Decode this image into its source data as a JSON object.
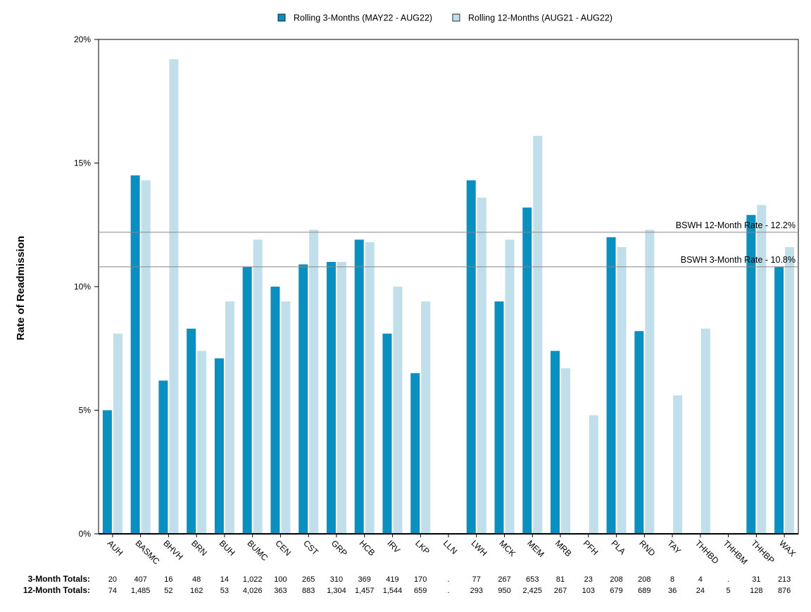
{
  "chart_data": {
    "type": "bar",
    "ylabel": "Rate of Readmission",
    "ylim": [
      0,
      20
    ],
    "yticks": [
      "0%",
      "5%",
      "10%",
      "15%",
      "20%"
    ],
    "grid": false,
    "legend_placement": "top-center",
    "categories": [
      "AUH",
      "BASMC",
      "BHVH",
      "BRN",
      "BUH",
      "BUMC",
      "CEN",
      "CST",
      "GRP",
      "HCB",
      "IRV",
      "LKP",
      "LLN",
      "LWH",
      "MCK",
      "MEM",
      "MRB",
      "PFH",
      "PLA",
      "RND",
      "TAY",
      "THHBD",
      "THHBM",
      "THHBP",
      "WAX"
    ],
    "series": [
      {
        "name": "Rolling 3-Months (MAY22 - AUG22)",
        "color": "#0a8fc1",
        "values": [
          5.0,
          14.5,
          6.2,
          8.3,
          7.1,
          10.8,
          10.0,
          10.9,
          11.0,
          11.9,
          8.1,
          6.5,
          null,
          14.3,
          9.4,
          13.2,
          7.4,
          null,
          12.0,
          8.2,
          null,
          null,
          null,
          12.9,
          10.8
        ]
      },
      {
        "name": "Rolling 12-Months (AUG21 - AUG22)",
        "color": "#c1dfea",
        "values": [
          8.1,
          14.3,
          19.2,
          7.4,
          9.4,
          11.9,
          9.4,
          12.3,
          11.0,
          11.8,
          10.0,
          9.4,
          null,
          13.6,
          11.9,
          16.1,
          6.7,
          4.8,
          11.6,
          12.3,
          5.6,
          8.3,
          null,
          13.3,
          11.6
        ]
      }
    ],
    "reference_lines": [
      {
        "label": "BSWH 12-Month Rate - 12.2%",
        "value": 12.2
      },
      {
        "label": "BSWH  3-Month Rate - 10.8%",
        "value": 10.8
      }
    ],
    "totals": {
      "three_month_label": "3-Month Totals:",
      "twelve_month_label": "12-Month Totals:",
      "three_month": [
        "20",
        "407",
        "16",
        "48",
        "14",
        "1,022",
        "100",
        "265",
        "310",
        "369",
        "419",
        "170",
        ".",
        "77",
        "267",
        "653",
        "81",
        "23",
        "208",
        "208",
        "8",
        "4",
        ".",
        "31",
        "213"
      ],
      "twelve_month": [
        "74",
        "1,485",
        "52",
        "162",
        "53",
        "4,026",
        "363",
        "883",
        "1,304",
        "1,457",
        "1,544",
        "659",
        ".",
        "293",
        "950",
        "2,425",
        "267",
        "103",
        "679",
        "689",
        "36",
        "24",
        "5",
        "128",
        "876"
      ]
    }
  }
}
